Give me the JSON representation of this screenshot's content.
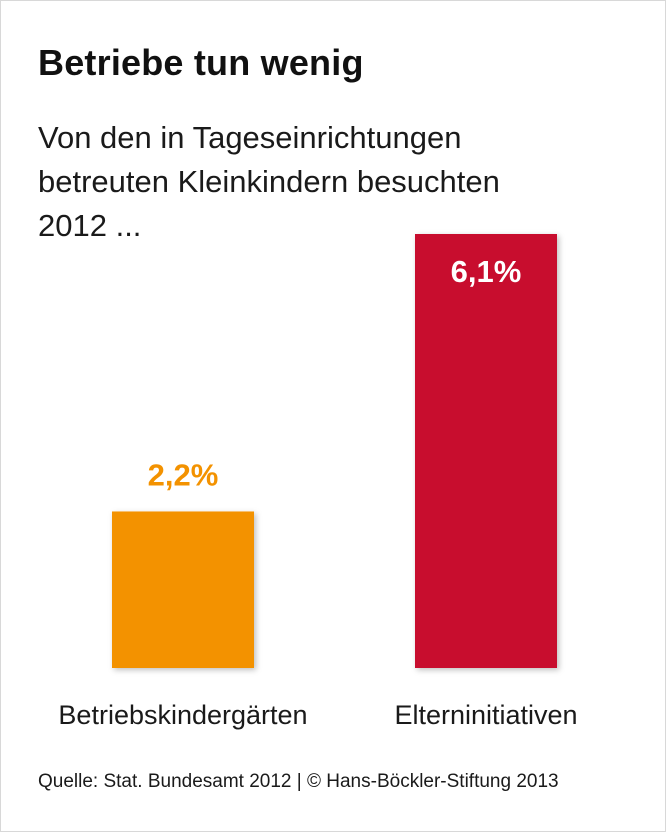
{
  "chart_data": {
    "type": "bar",
    "title": "Betriebe tun wenig",
    "subtitle_lines": [
      "Von den in Tageseinrichtungen",
      "betreuten Kleinkindern besuchten",
      "2012 ..."
    ],
    "categories": [
      "Betriebskindergärten",
      "Elterninitiativen"
    ],
    "values": [
      2.2,
      6.1
    ],
    "value_labels": [
      "2,2%",
      "6,1%"
    ],
    "bar_colors": [
      "#f39200",
      "#c8102e"
    ],
    "value_label_colors": [
      "#f39200",
      "#ffffff"
    ],
    "xlabel": "",
    "ylabel": "",
    "ylim": [
      0,
      6.1
    ],
    "grid": false,
    "legend": "none",
    "source": "Quelle: Stat. Bundesamt 2012 | © Hans-Böckler-Stiftung 2013"
  }
}
